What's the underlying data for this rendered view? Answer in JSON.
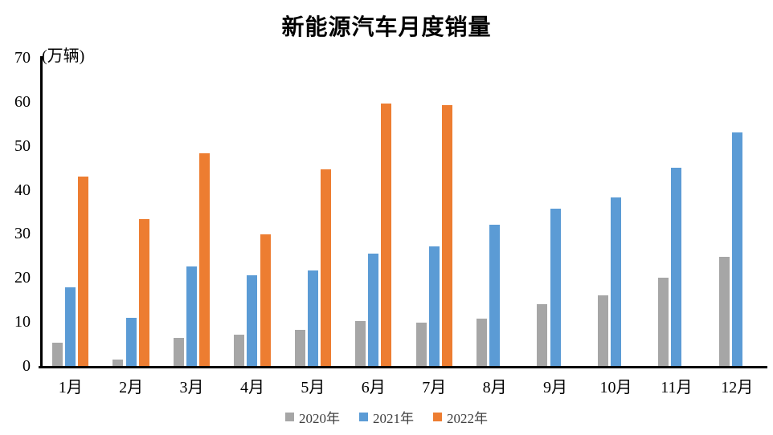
{
  "chart_data": {
    "type": "bar",
    "title": "新能源汽车月度销量",
    "unit": "(万辆)",
    "categories": [
      "1月",
      "2月",
      "3月",
      "4月",
      "5月",
      "6月",
      "7月",
      "8月",
      "9月",
      "10月",
      "11月",
      "12月"
    ],
    "series": [
      {
        "name": "2020年",
        "color": "#A6A6A6",
        "values": [
          5.2,
          1.5,
          6.4,
          7.2,
          8.2,
          10.3,
          9.8,
          10.8,
          14.0,
          16.1,
          20.0,
          24.8
        ]
      },
      {
        "name": "2021年",
        "color": "#5B9BD5",
        "values": [
          17.9,
          11.0,
          22.6,
          20.6,
          21.7,
          25.6,
          27.1,
          32.1,
          35.7,
          38.3,
          45.0,
          53.1
        ]
      },
      {
        "name": "2022年",
        "color": "#ED7D31",
        "values": [
          43.1,
          33.4,
          48.4,
          29.9,
          44.7,
          59.6,
          59.3,
          null,
          null,
          null,
          null,
          null
        ]
      }
    ],
    "ylim": [
      0,
      70
    ],
    "ytick_step": 10,
    "grid": false,
    "legend_position": "bottom",
    "axis_color": "#000000",
    "background": "#ffffff"
  }
}
